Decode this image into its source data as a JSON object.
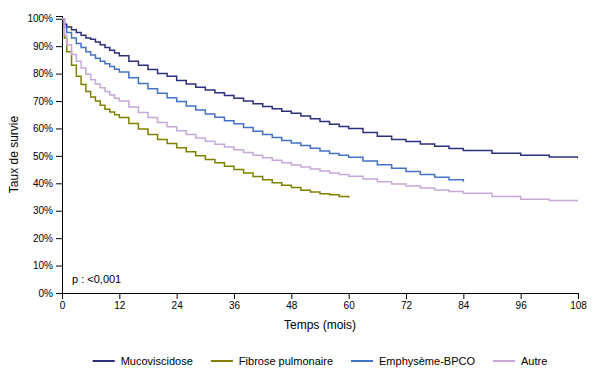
{
  "chart_data": {
    "type": "step",
    "xlabel": "Temps (mois)",
    "ylabel": "Taux de survie",
    "xlim": [
      0,
      108
    ],
    "ylim": [
      0,
      1.01
    ],
    "xticks": [
      0,
      12,
      24,
      36,
      48,
      60,
      72,
      84,
      96,
      108
    ],
    "yticks": [
      {
        "value": 0.0,
        "label": "0%"
      },
      {
        "value": 0.1,
        "label": "10%"
      },
      {
        "value": 0.2,
        "label": "20%"
      },
      {
        "value": 0.3,
        "label": "30%"
      },
      {
        "value": 0.4,
        "label": "40%"
      },
      {
        "value": 0.5,
        "label": "50%"
      },
      {
        "value": 0.6,
        "label": "60%"
      },
      {
        "value": 0.7,
        "label": "70%"
      },
      {
        "value": 0.8,
        "label": "80%"
      },
      {
        "value": 0.9,
        "label": "90%"
      },
      {
        "value": 1.0,
        "label": "100%"
      }
    ],
    "annotation": "p : <0,001",
    "grid": false,
    "legend": "bottom",
    "series": [
      {
        "name": "Mucoviscidose",
        "color": "#2b2f7e",
        "x": [
          0,
          0.5,
          1,
          2,
          3,
          4,
          5,
          6,
          7,
          8,
          9,
          10,
          11,
          12,
          14,
          16,
          18,
          20,
          22,
          24,
          26,
          28,
          30,
          32,
          34,
          36,
          38,
          40,
          42,
          44,
          46,
          48,
          50,
          52,
          54,
          56,
          58,
          60,
          63,
          66,
          69,
          72,
          75,
          78,
          81,
          84,
          90,
          96,
          102,
          108
        ],
        "values": [
          1.0,
          0.98,
          0.97,
          0.96,
          0.95,
          0.94,
          0.93,
          0.925,
          0.915,
          0.905,
          0.895,
          0.885,
          0.875,
          0.865,
          0.845,
          0.83,
          0.815,
          0.8,
          0.79,
          0.775,
          0.762,
          0.75,
          0.74,
          0.73,
          0.72,
          0.71,
          0.7,
          0.69,
          0.68,
          0.672,
          0.663,
          0.655,
          0.645,
          0.635,
          0.625,
          0.615,
          0.607,
          0.6,
          0.585,
          0.572,
          0.56,
          0.552,
          0.543,
          0.535,
          0.527,
          0.52,
          0.51,
          0.502,
          0.496,
          0.49
        ]
      },
      {
        "name": "Fibrose pulmonaire",
        "color": "#808000",
        "x": [
          0,
          0.5,
          1,
          2,
          3,
          4,
          5,
          6,
          7,
          8,
          9,
          10,
          11,
          12,
          14,
          16,
          18,
          20,
          22,
          24,
          26,
          28,
          30,
          32,
          34,
          36,
          38,
          40,
          42,
          44,
          46,
          48,
          50,
          52,
          54,
          56,
          58,
          60
        ],
        "values": [
          1.0,
          0.93,
          0.88,
          0.83,
          0.79,
          0.76,
          0.735,
          0.715,
          0.7,
          0.685,
          0.67,
          0.66,
          0.65,
          0.64,
          0.618,
          0.598,
          0.578,
          0.56,
          0.545,
          0.53,
          0.515,
          0.5,
          0.487,
          0.475,
          0.462,
          0.45,
          0.438,
          0.425,
          0.413,
          0.402,
          0.393,
          0.385,
          0.375,
          0.368,
          0.362,
          0.358,
          0.352,
          0.347
        ]
      },
      {
        "name": "Emphysème-BPCO",
        "color": "#4472c4",
        "x": [
          0,
          0.5,
          1,
          2,
          3,
          4,
          5,
          6,
          7,
          8,
          9,
          10,
          11,
          12,
          14,
          16,
          18,
          20,
          22,
          24,
          26,
          28,
          30,
          32,
          34,
          36,
          38,
          40,
          42,
          44,
          46,
          48,
          50,
          52,
          54,
          56,
          58,
          60,
          63,
          66,
          69,
          72,
          75,
          78,
          81,
          84
        ],
        "values": [
          1.0,
          0.97,
          0.95,
          0.93,
          0.91,
          0.895,
          0.88,
          0.868,
          0.856,
          0.845,
          0.836,
          0.826,
          0.816,
          0.806,
          0.785,
          0.764,
          0.745,
          0.728,
          0.712,
          0.698,
          0.682,
          0.667,
          0.653,
          0.641,
          0.628,
          0.617,
          0.603,
          0.59,
          0.578,
          0.567,
          0.556,
          0.547,
          0.538,
          0.528,
          0.518,
          0.509,
          0.502,
          0.495,
          0.481,
          0.468,
          0.455,
          0.443,
          0.432,
          0.422,
          0.413,
          0.406
        ]
      },
      {
        "name": "Autre",
        "color": "#c8a8d8",
        "x": [
          0,
          0.5,
          1,
          2,
          3,
          4,
          5,
          6,
          7,
          8,
          9,
          10,
          11,
          12,
          14,
          16,
          18,
          20,
          22,
          24,
          26,
          28,
          30,
          32,
          34,
          36,
          38,
          40,
          42,
          44,
          46,
          48,
          50,
          52,
          54,
          56,
          58,
          60,
          63,
          66,
          69,
          72,
          75,
          78,
          81,
          84,
          90,
          96,
          102,
          108
        ],
        "values": [
          1.0,
          0.94,
          0.905,
          0.87,
          0.845,
          0.82,
          0.798,
          0.778,
          0.762,
          0.748,
          0.735,
          0.722,
          0.71,
          0.7,
          0.678,
          0.658,
          0.64,
          0.622,
          0.606,
          0.592,
          0.578,
          0.565,
          0.553,
          0.542,
          0.532,
          0.522,
          0.512,
          0.502,
          0.493,
          0.484,
          0.475,
          0.467,
          0.459,
          0.452,
          0.445,
          0.438,
          0.432,
          0.426,
          0.416,
          0.406,
          0.397,
          0.39,
          0.383,
          0.376,
          0.37,
          0.364,
          0.352,
          0.342,
          0.337,
          0.333
        ]
      }
    ]
  }
}
